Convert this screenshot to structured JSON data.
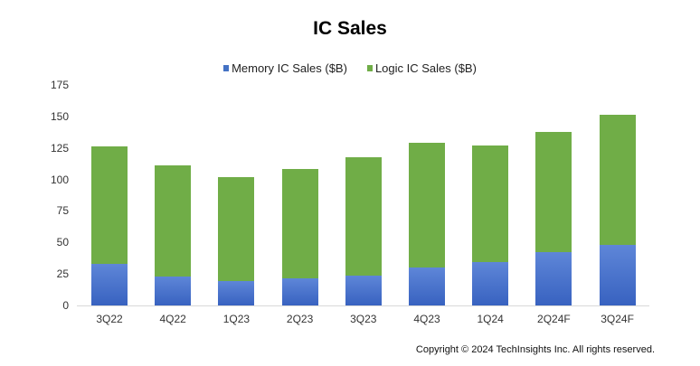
{
  "chart_data": {
    "type": "bar",
    "stacked": true,
    "title": "IC Sales",
    "xlabel": "",
    "ylabel": "",
    "ylim": [
      0,
      175
    ],
    "yticks": [
      0,
      25,
      50,
      75,
      100,
      125,
      150,
      175
    ],
    "categories": [
      "3Q22",
      "4Q22",
      "1Q23",
      "2Q23",
      "3Q23",
      "4Q23",
      "1Q24",
      "2Q24F",
      "3Q24F"
    ],
    "series": [
      {
        "name": "Memory IC Sales ($B)",
        "color": "#4472C4",
        "values": [
          33,
          23,
          19,
          21.5,
          24,
          30,
          34.5,
          42.5,
          48
        ]
      },
      {
        "name": "Logic IC Sales ($B)",
        "color": "#70AD47",
        "values": [
          93,
          88,
          82.5,
          87,
          93.5,
          99,
          92.5,
          95.5,
          103.5
        ]
      }
    ],
    "totals": [
      126,
      111,
      101.5,
      108.5,
      117.5,
      129,
      127,
      138,
      151.5
    ],
    "legend_position": "top",
    "grid": false
  },
  "legend": [
    {
      "label": "Memory IC Sales ($B)",
      "color": "#4472C4"
    },
    {
      "label": "Logic IC Sales ($B)",
      "color": "#70AD47"
    }
  ],
  "footer": {
    "copyright": "Copyright © 2024 TechInsights Inc.  All rights reserved."
  }
}
